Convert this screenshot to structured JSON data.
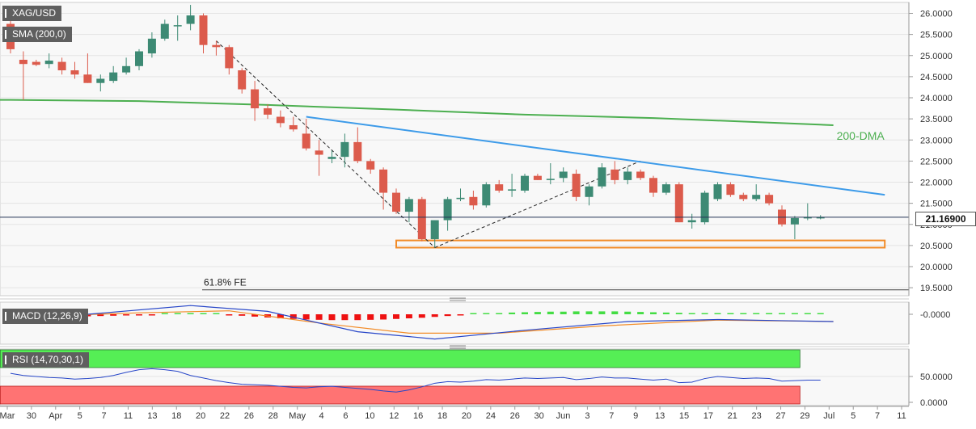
{
  "symbol": "XAG/USD",
  "sma_label": "SMA (200,0)",
  "macd_label": "MACD (12,26,9)",
  "rsi_label": "RSI (14,70,30,1)",
  "current_price": "21.16900",
  "colors": {
    "up_candle": "#3d8a74",
    "down_candle": "#dc5b4c",
    "sma_line": "#4caf50",
    "resistance_line": "#3d9be9",
    "support_zone": "#f28c28",
    "macd_line": "#2746c8",
    "signal_line": "#f28c28",
    "histogram_pos": "#44dd44",
    "histogram_neg": "#ee1111",
    "rsi_line": "#2746c8",
    "overbought_zone": "#55ee55",
    "oversold_zone": "#ff7373"
  },
  "chart_data": [
    {
      "type": "candlestick",
      "title": "XAG/USD",
      "price_range": [
        19.4,
        26.2
      ],
      "y_ticks": [
        "26.0000",
        "25.5000",
        "25.0000",
        "24.5000",
        "24.0000",
        "23.5000",
        "23.0000",
        "22.5000",
        "22.0000",
        "21.5000",
        "21.0000",
        "20.5000",
        "20.0000",
        "19.5000"
      ],
      "x_ticks": [
        "Mar",
        "30",
        "Apr",
        "5",
        "7",
        "11",
        "13",
        "18",
        "20",
        "22",
        "26",
        "28",
        "May",
        "4",
        "6",
        "10",
        "12",
        "16",
        "18",
        "20",
        "24",
        "26",
        "30",
        "Jun",
        "3",
        "7",
        "9",
        "13",
        "15",
        "17",
        "21",
        "23",
        "27",
        "29",
        "Jul",
        "5",
        "7",
        "11"
      ],
      "candles": [
        {
          "o": 25.75,
          "h": 25.95,
          "l": 25.05,
          "c": 25.15
        },
        {
          "o": 24.9,
          "h": 25.1,
          "l": 23.95,
          "c": 24.8
        },
        {
          "o": 24.85,
          "h": 24.9,
          "l": 24.75,
          "c": 24.78
        },
        {
          "o": 24.8,
          "h": 25.05,
          "l": 24.7,
          "c": 24.88
        },
        {
          "o": 24.85,
          "h": 24.95,
          "l": 24.55,
          "c": 24.65
        },
        {
          "o": 24.65,
          "h": 24.85,
          "l": 24.45,
          "c": 24.55
        },
        {
          "o": 24.55,
          "h": 25.05,
          "l": 24.35,
          "c": 24.35
        },
        {
          "o": 24.35,
          "h": 24.55,
          "l": 24.15,
          "c": 24.45
        },
        {
          "o": 24.4,
          "h": 24.75,
          "l": 24.35,
          "c": 24.6
        },
        {
          "o": 24.6,
          "h": 24.95,
          "l": 24.55,
          "c": 24.75
        },
        {
          "o": 24.75,
          "h": 25.15,
          "l": 24.65,
          "c": 25.1
        },
        {
          "o": 25.05,
          "h": 25.55,
          "l": 24.95,
          "c": 25.4
        },
        {
          "o": 25.4,
          "h": 25.85,
          "l": 25.35,
          "c": 25.75
        },
        {
          "o": 25.7,
          "h": 25.95,
          "l": 25.35,
          "c": 25.72
        },
        {
          "o": 25.75,
          "h": 26.2,
          "l": 25.6,
          "c": 25.95
        },
        {
          "o": 25.95,
          "h": 26.0,
          "l": 25.05,
          "c": 25.25
        },
        {
          "o": 25.25,
          "h": 25.35,
          "l": 25.0,
          "c": 25.2
        },
        {
          "o": 25.2,
          "h": 25.25,
          "l": 24.55,
          "c": 24.7
        },
        {
          "o": 24.65,
          "h": 24.7,
          "l": 24.1,
          "c": 24.2
        },
        {
          "o": 24.2,
          "h": 24.4,
          "l": 23.45,
          "c": 23.75
        },
        {
          "o": 23.75,
          "h": 23.85,
          "l": 23.5,
          "c": 23.6
        },
        {
          "o": 23.55,
          "h": 23.7,
          "l": 23.3,
          "c": 23.4
        },
        {
          "o": 23.35,
          "h": 23.55,
          "l": 23.2,
          "c": 23.25
        },
        {
          "o": 23.15,
          "h": 23.5,
          "l": 22.75,
          "c": 22.8
        },
        {
          "o": 22.75,
          "h": 23.0,
          "l": 22.15,
          "c": 22.65
        },
        {
          "o": 22.55,
          "h": 22.75,
          "l": 22.45,
          "c": 22.6
        },
        {
          "o": 22.6,
          "h": 23.15,
          "l": 22.35,
          "c": 22.95
        },
        {
          "o": 22.95,
          "h": 23.3,
          "l": 22.45,
          "c": 22.5
        },
        {
          "o": 22.5,
          "h": 22.55,
          "l": 22.2,
          "c": 22.3
        },
        {
          "o": 22.3,
          "h": 22.35,
          "l": 21.35,
          "c": 21.75
        },
        {
          "o": 21.75,
          "h": 21.85,
          "l": 21.25,
          "c": 21.3
        },
        {
          "o": 21.3,
          "h": 21.65,
          "l": 21.05,
          "c": 21.6
        },
        {
          "o": 21.6,
          "h": 21.65,
          "l": 20.6,
          "c": 20.65
        },
        {
          "o": 20.65,
          "h": 21.1,
          "l": 20.45,
          "c": 21.1
        },
        {
          "o": 21.1,
          "h": 21.65,
          "l": 20.85,
          "c": 21.6
        },
        {
          "o": 21.6,
          "h": 21.85,
          "l": 21.55,
          "c": 21.63
        },
        {
          "o": 21.65,
          "h": 21.8,
          "l": 21.35,
          "c": 21.45
        },
        {
          "o": 21.45,
          "h": 22.0,
          "l": 21.4,
          "c": 21.95
        },
        {
          "o": 21.95,
          "h": 22.05,
          "l": 21.75,
          "c": 21.8
        },
        {
          "o": 21.8,
          "h": 22.2,
          "l": 21.65,
          "c": 21.83
        },
        {
          "o": 21.8,
          "h": 22.2,
          "l": 21.75,
          "c": 22.15
        },
        {
          "o": 22.15,
          "h": 22.2,
          "l": 22.05,
          "c": 22.05
        },
        {
          "o": 22.05,
          "h": 22.45,
          "l": 21.95,
          "c": 22.08
        },
        {
          "o": 22.1,
          "h": 22.35,
          "l": 22.0,
          "c": 22.25
        },
        {
          "o": 22.2,
          "h": 22.3,
          "l": 21.55,
          "c": 21.65
        },
        {
          "o": 21.65,
          "h": 21.95,
          "l": 21.45,
          "c": 21.9
        },
        {
          "o": 21.9,
          "h": 22.45,
          "l": 21.85,
          "c": 22.35
        },
        {
          "o": 22.3,
          "h": 22.5,
          "l": 21.95,
          "c": 22.05
        },
        {
          "o": 22.05,
          "h": 22.35,
          "l": 21.95,
          "c": 22.25
        },
        {
          "o": 22.25,
          "h": 22.3,
          "l": 22.05,
          "c": 22.1
        },
        {
          "o": 22.1,
          "h": 22.15,
          "l": 21.65,
          "c": 21.75
        },
        {
          "o": 21.75,
          "h": 22.0,
          "l": 21.7,
          "c": 21.95
        },
        {
          "o": 21.95,
          "h": 22.0,
          "l": 21.05,
          "c": 21.05
        },
        {
          "o": 21.05,
          "h": 21.25,
          "l": 20.9,
          "c": 21.1
        },
        {
          "o": 21.05,
          "h": 21.8,
          "l": 21.0,
          "c": 21.75
        },
        {
          "o": 21.6,
          "h": 22.0,
          "l": 21.55,
          "c": 21.95
        },
        {
          "o": 21.95,
          "h": 22.0,
          "l": 21.65,
          "c": 21.7
        },
        {
          "o": 21.7,
          "h": 21.75,
          "l": 21.55,
          "c": 21.6
        },
        {
          "o": 21.6,
          "h": 21.95,
          "l": 21.55,
          "c": 21.7
        },
        {
          "o": 21.7,
          "h": 21.75,
          "l": 21.45,
          "c": 21.5
        },
        {
          "o": 21.35,
          "h": 21.45,
          "l": 20.95,
          "c": 21.0
        },
        {
          "o": 21.0,
          "h": 21.2,
          "l": 20.65,
          "c": 21.15
        },
        {
          "o": 21.15,
          "h": 21.5,
          "l": 21.1,
          "c": 21.17
        },
        {
          "o": 21.17,
          "h": 21.22,
          "l": 21.12,
          "c": 21.17
        }
      ],
      "sma_200": [
        {
          "i": 0,
          "v": 23.95
        },
        {
          "i": 10,
          "v": 23.92
        },
        {
          "i": 20,
          "v": 23.83
        },
        {
          "i": 30,
          "v": 23.72
        },
        {
          "i": 40,
          "v": 23.6
        },
        {
          "i": 50,
          "v": 23.52
        },
        {
          "i": 60,
          "v": 23.4
        },
        {
          "i": 64,
          "v": 23.35
        }
      ],
      "resistance_line": {
        "from": [
          23,
          23.55
        ],
        "to": [
          68,
          21.7
        ]
      },
      "support_zone": {
        "from_index": 30,
        "to_index": 68,
        "low": 20.45,
        "high": 20.62
      },
      "fib_level": {
        "label": "61.8% FE",
        "value": 19.45
      },
      "dashed_lines": [
        {
          "from": [
            16,
            25.35
          ],
          "to": [
            33,
            20.45
          ]
        },
        {
          "from": [
            33,
            20.45
          ],
          "to": [
            49,
            22.5
          ]
        }
      ],
      "annotations": [
        "200-DMA",
        "61.8% FE"
      ],
      "last_price": 21.169
    },
    {
      "type": "bar",
      "title": "MACD (12,26,9)",
      "y_ticks": [
        "-0.0000"
      ],
      "histogram": [
        -0.05,
        -0.06,
        -0.07,
        -0.07,
        -0.08,
        -0.08,
        -0.07,
        -0.06,
        -0.05,
        -0.04,
        -0.03,
        -0.01,
        0.0,
        0.01,
        0.01,
        0.01,
        0.0,
        -0.02,
        -0.05,
        -0.08,
        -0.11,
        -0.14,
        -0.16,
        -0.18,
        -0.19,
        -0.2,
        -0.2,
        -0.2,
        -0.19,
        -0.18,
        -0.16,
        -0.14,
        -0.12,
        -0.09,
        -0.06,
        -0.03,
        0.0,
        0.02,
        0.04,
        0.06,
        0.07,
        0.08,
        0.09,
        0.09,
        0.1,
        0.1,
        0.1,
        0.1,
        0.09,
        0.08,
        0.07,
        0.06,
        0.05,
        0.04,
        0.03,
        0.03,
        0.02,
        0.02,
        0.02,
        0.01,
        0.01,
        0.01,
        0.01,
        0.01
      ],
      "macd_line": [
        {
          "i": 0,
          "v": -0.05
        },
        {
          "i": 6,
          "v": 0.0
        },
        {
          "i": 14,
          "v": 0.3
        },
        {
          "i": 20,
          "v": 0.1
        },
        {
          "i": 27,
          "v": -0.6
        },
        {
          "i": 33,
          "v": -0.85
        },
        {
          "i": 40,
          "v": -0.55
        },
        {
          "i": 48,
          "v": -0.25
        },
        {
          "i": 55,
          "v": -0.18
        },
        {
          "i": 60,
          "v": -0.22
        },
        {
          "i": 64,
          "v": -0.25
        }
      ],
      "signal_line": [
        {
          "i": 0,
          "v": -0.1
        },
        {
          "i": 10,
          "v": 0.05
        },
        {
          "i": 17,
          "v": 0.12
        },
        {
          "i": 24,
          "v": -0.3
        },
        {
          "i": 31,
          "v": -0.65
        },
        {
          "i": 38,
          "v": -0.65
        },
        {
          "i": 46,
          "v": -0.4
        },
        {
          "i": 55,
          "v": -0.2
        },
        {
          "i": 64,
          "v": -0.25
        }
      ],
      "ylim": [
        -1.0,
        0.4
      ]
    },
    {
      "type": "line",
      "title": "RSI (14,70,30,1)",
      "y_ticks": [
        "50.0000",
        "0.0000"
      ],
      "ylim": [
        0,
        100
      ],
      "overbought": 70,
      "oversold": 30,
      "values": [
        56,
        52,
        50,
        48,
        47,
        45,
        46,
        48,
        52,
        58,
        63,
        65,
        63,
        60,
        52,
        47,
        42,
        38,
        35,
        34,
        33,
        31,
        29,
        28,
        30,
        31,
        29,
        27,
        25,
        22,
        20,
        24,
        30,
        37,
        40,
        39,
        41,
        44,
        43,
        45,
        47,
        46,
        47,
        48,
        44,
        46,
        49,
        47,
        47,
        45,
        43,
        45,
        38,
        39,
        46,
        50,
        48,
        46,
        47,
        46,
        41,
        42,
        43,
        43
      ]
    }
  ]
}
